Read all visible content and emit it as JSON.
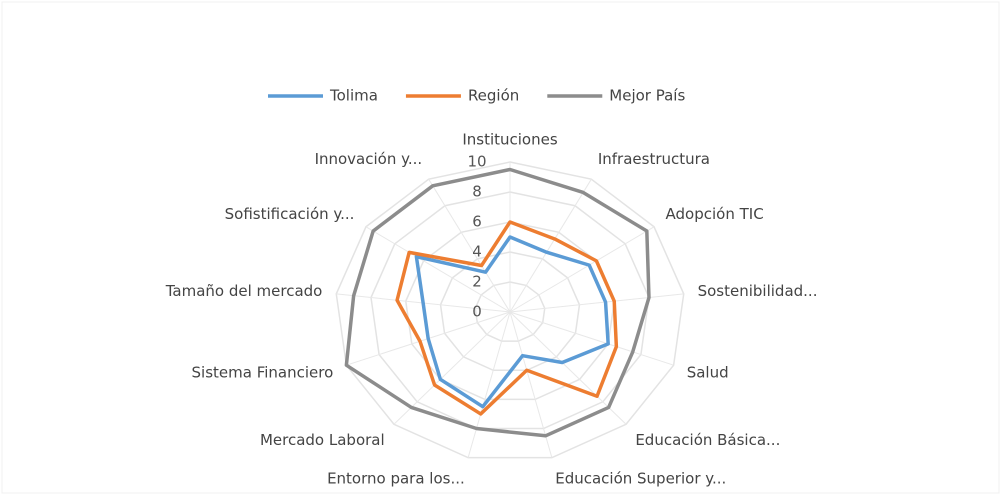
{
  "chart_data": {
    "type": "radar",
    "categories": [
      "Instituciones",
      "Infraestructura",
      "Adopción TIC",
      "Sostenibilidad...",
      "Salud",
      "Educación Básica...",
      "Educación Superior y...",
      "Entorno para los...",
      "Mercado Laboral",
      "Sistema Financiero",
      "Tamaño del mercado",
      "Sofistificación y...",
      "Innovación y..."
    ],
    "series": [
      {
        "name": "Tolima",
        "color": "#5b9bd5",
        "values": [
          5,
          4.5,
          5.5,
          5.5,
          6,
          4.5,
          3,
          6.5,
          6,
          5,
          5,
          6.5,
          3
        ]
      },
      {
        "name": "Región",
        "color": "#ed7d31",
        "values": [
          6,
          5.5,
          6,
          6,
          6.5,
          7.5,
          4,
          7,
          6.5,
          5.5,
          6.5,
          7,
          3.5
        ]
      },
      {
        "name": "Mejor País",
        "color": "#8c8c8c",
        "values": [
          9.5,
          9,
          9.5,
          8,
          7.5,
          8.5,
          8.5,
          8,
          8.5,
          10,
          9,
          9.5,
          9.5
        ]
      }
    ],
    "ylim": [
      0,
      10
    ],
    "yticks": [
      0,
      2,
      4,
      6,
      8,
      10
    ],
    "grid": true,
    "legend": "top"
  }
}
